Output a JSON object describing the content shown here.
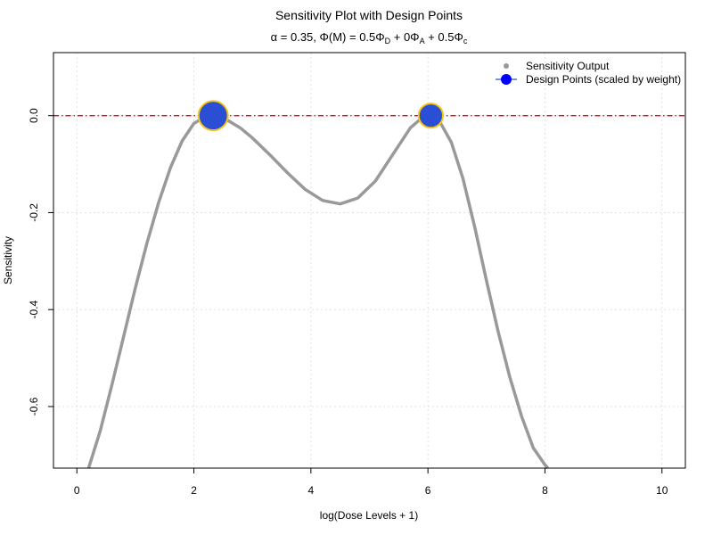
{
  "chart_data": {
    "type": "line",
    "title": "Sensitivity Plot with Design Points",
    "subtitle": {
      "alpha_part": "α = 0.35, ",
      "phi_m_part": "Φ(M) = 0.5Φ",
      "sub_d": "D",
      "plus_zero": " + 0Φ",
      "sub_a": "A",
      "plus_half": " + 0.5Φ",
      "sub_c": "c"
    },
    "xlabel": "log(Dose Levels + 1)",
    "ylabel": "Sensitivity",
    "xlim": [
      -0.4,
      10.4
    ],
    "ylim": [
      -0.727,
      0.13
    ],
    "x_ticks": [
      0,
      2,
      4,
      6,
      8,
      10
    ],
    "y_ticks": [
      0.0,
      -0.2,
      -0.4,
      -0.6
    ],
    "x_tick_labels": [
      "0",
      "2",
      "4",
      "6",
      "8",
      "10"
    ],
    "y_tick_labels": [
      "0.0",
      "-0.2",
      "-0.4",
      "-0.6"
    ],
    "grid": true,
    "legend_position": "top-right",
    "reference_line": {
      "y": 0.0,
      "color": "#ff0000",
      "style": "dash-dot"
    },
    "series": [
      {
        "name": "Sensitivity Output",
        "color": "#999999",
        "x": [
          0.2,
          0.4,
          0.6,
          0.8,
          1.0,
          1.2,
          1.4,
          1.6,
          1.8,
          2.0,
          2.2,
          2.33,
          2.5,
          2.8,
          3.0,
          3.3,
          3.6,
          3.9,
          4.2,
          4.5,
          4.8,
          5.1,
          5.4,
          5.7,
          5.9,
          6.05,
          6.2,
          6.4,
          6.6,
          6.8,
          7.0,
          7.2,
          7.4,
          7.6,
          7.8,
          8.0,
          8.05
        ],
        "y": [
          -0.735,
          -0.65,
          -0.555,
          -0.455,
          -0.355,
          -0.262,
          -0.178,
          -0.107,
          -0.052,
          -0.016,
          -0.002,
          0.0,
          -0.004,
          -0.026,
          -0.046,
          -0.081,
          -0.118,
          -0.152,
          -0.175,
          -0.182,
          -0.17,
          -0.135,
          -0.08,
          -0.025,
          -0.004,
          0.0,
          -0.012,
          -0.055,
          -0.13,
          -0.23,
          -0.34,
          -0.445,
          -0.54,
          -0.62,
          -0.685,
          -0.72,
          -0.74
        ]
      },
      {
        "name": "Design Points (scaled by weight)",
        "color": "#2b4fd4",
        "edge_color": "#f5c518",
        "points": [
          {
            "x": 2.33,
            "y": 0.0,
            "weight": 0.6
          },
          {
            "x": 6.05,
            "y": 0.0,
            "weight": 0.4
          }
        ]
      }
    ]
  }
}
